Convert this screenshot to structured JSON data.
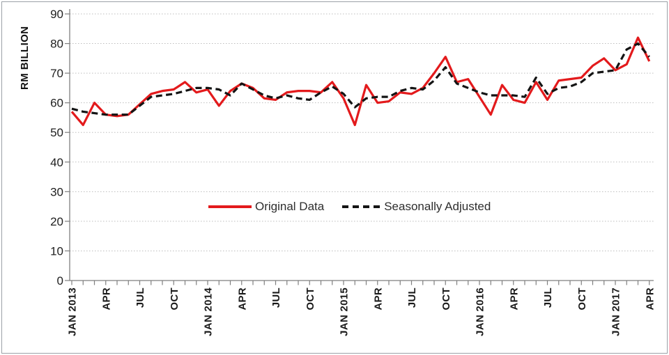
{
  "chart_data": {
    "type": "line",
    "title": "",
    "ylabel": "RM BILLION",
    "xlabel": "",
    "ylim": [
      0,
      90
    ],
    "yticks": [
      0,
      10,
      20,
      30,
      40,
      50,
      60,
      70,
      80,
      90
    ],
    "grid": "horizontal dotted gridlines",
    "legend_position": "inside center, mid-height",
    "x": [
      "JAN 2013",
      "FEB 2013",
      "MAR 2013",
      "APR 2013",
      "MAY 2013",
      "JUN 2013",
      "JUL 2013",
      "AUG 2013",
      "SEP 2013",
      "OCT 2013",
      "NOV 2013",
      "DEC 2013",
      "JAN 2014",
      "FEB 2014",
      "MAR 2014",
      "APR 2014",
      "MAY 2014",
      "JUN 2014",
      "JUL 2014",
      "AUG 2014",
      "SEP 2014",
      "OCT 2014",
      "NOV 2014",
      "DEC 2014",
      "JAN 2015",
      "FEB 2015",
      "MAR 2015",
      "APR 2015",
      "MAY 2015",
      "JUN 2015",
      "JUL 2015",
      "AUG 2015",
      "SEP 2015",
      "OCT 2015",
      "NOV 2015",
      "DEC 2015",
      "JAN 2016",
      "FEB 2016",
      "MAR 2016",
      "APR 2016",
      "MAY 2016",
      "JUN 2016",
      "JUL 2016",
      "AUG 2016",
      "SEP 2016",
      "OCT 2016",
      "NOV 2016",
      "DEC 2016",
      "JAN 2017",
      "FEB 2017",
      "MAR 2017",
      "APR 2017"
    ],
    "x_tick_labels": [
      {
        "index": 0,
        "label": "JAN 2013"
      },
      {
        "index": 3,
        "label": "APR"
      },
      {
        "index": 6,
        "label": "JUL"
      },
      {
        "index": 9,
        "label": "OCT"
      },
      {
        "index": 12,
        "label": "JAN 2014"
      },
      {
        "index": 15,
        "label": "APR"
      },
      {
        "index": 18,
        "label": "JUL"
      },
      {
        "index": 21,
        "label": "OCT"
      },
      {
        "index": 24,
        "label": "JAN 2015"
      },
      {
        "index": 27,
        "label": "APR"
      },
      {
        "index": 30,
        "label": "JUL"
      },
      {
        "index": 33,
        "label": "OCT"
      },
      {
        "index": 36,
        "label": "JAN 2016"
      },
      {
        "index": 39,
        "label": "APR"
      },
      {
        "index": 42,
        "label": "JUL"
      },
      {
        "index": 45,
        "label": "OCT"
      },
      {
        "index": 48,
        "label": "JAN 2017"
      },
      {
        "index": 51,
        "label": "APR"
      }
    ],
    "series": [
      {
        "name": "Original Data",
        "style": "solid",
        "color": "#e31a1c",
        "values": [
          57,
          52.5,
          60,
          56,
          55.5,
          56,
          59.5,
          63,
          64,
          64.5,
          67,
          63.5,
          64.5,
          59,
          64,
          66.5,
          65,
          61.5,
          61,
          63.5,
          64,
          64,
          63.5,
          67,
          61.5,
          52.5,
          66,
          60,
          60.5,
          63.5,
          63,
          65,
          70,
          75.5,
          67,
          68,
          62,
          56,
          66,
          61,
          60,
          67,
          61,
          67.5,
          68,
          68.5,
          72.5,
          75,
          71,
          73,
          82,
          74
        ]
      },
      {
        "name": "Seasonally Adjusted",
        "style": "dashed",
        "color": "#141414",
        "values": [
          58,
          57,
          56.5,
          56,
          56,
          56,
          59,
          62,
          62.5,
          63,
          64,
          65,
          65,
          64.5,
          62.5,
          66.5,
          64.5,
          62.5,
          61.5,
          62.5,
          61.5,
          61,
          63.5,
          65.5,
          63,
          58.5,
          61.5,
          62,
          62,
          64,
          65,
          64.5,
          67.5,
          72,
          66.5,
          65,
          63.5,
          62.5,
          62.5,
          62.5,
          62,
          68.5,
          63,
          65,
          65.5,
          67,
          70,
          70.5,
          71,
          78,
          80,
          75.5
        ]
      }
    ]
  },
  "colors": {
    "original_line": "#e31a1c",
    "adjusted_line": "#141414",
    "gridline": "#bdbdbd",
    "axis": "#7f7f7f",
    "text": "#1a1a1a",
    "frame_border": "#9aa0a6",
    "background": "#ffffff"
  }
}
